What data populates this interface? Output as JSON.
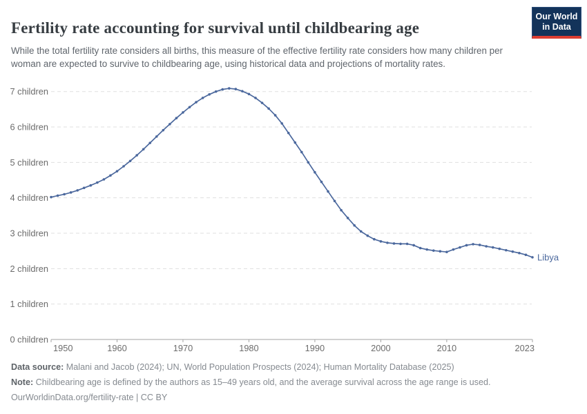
{
  "header": {
    "title": "Fertility rate accounting for survival until childbearing age",
    "subtitle": "While the total fertility rate considers all births, this measure of the effective fertility rate considers how many children per woman are expected to survive to childbearing age, using historical data and projections of mortality rates.",
    "logo": {
      "line1": "Our World",
      "line2": "in Data"
    }
  },
  "chart_data": {
    "type": "line",
    "title": "Fertility rate accounting for survival until childbearing age",
    "xlabel": "",
    "ylabel": "",
    "ylim": [
      0,
      7.4
    ],
    "grid": "horizontal-dashed",
    "legend_position": "end-of-line-label",
    "xticks": [
      1950,
      1960,
      1970,
      1980,
      1990,
      2000,
      2010,
      2023
    ],
    "yticks": [
      0,
      1,
      2,
      3,
      4,
      5,
      6,
      7
    ],
    "ytick_labels": [
      "0 children",
      "1 children",
      "2 children",
      "3 children",
      "4 children",
      "5 children",
      "6 children",
      "7 children"
    ],
    "x": [
      1950,
      1951,
      1952,
      1953,
      1954,
      1955,
      1956,
      1957,
      1958,
      1959,
      1960,
      1961,
      1962,
      1963,
      1964,
      1965,
      1966,
      1967,
      1968,
      1969,
      1970,
      1971,
      1972,
      1973,
      1974,
      1975,
      1976,
      1977,
      1978,
      1979,
      1980,
      1981,
      1982,
      1983,
      1984,
      1985,
      1986,
      1987,
      1988,
      1989,
      1990,
      1991,
      1992,
      1993,
      1994,
      1995,
      1996,
      1997,
      1998,
      1999,
      2000,
      2001,
      2002,
      2003,
      2004,
      2005,
      2006,
      2007,
      2008,
      2009,
      2010,
      2011,
      2012,
      2013,
      2014,
      2015,
      2016,
      2017,
      2018,
      2019,
      2020,
      2021,
      2022,
      2023
    ],
    "series": [
      {
        "name": "Libya",
        "color": "#4b689d",
        "values": [
          4.02,
          4.06,
          4.1,
          4.15,
          4.21,
          4.28,
          4.35,
          4.43,
          4.52,
          4.63,
          4.75,
          4.89,
          5.04,
          5.2,
          5.37,
          5.55,
          5.73,
          5.91,
          6.08,
          6.25,
          6.41,
          6.56,
          6.7,
          6.82,
          6.92,
          7.0,
          7.06,
          7.09,
          7.07,
          7.01,
          6.93,
          6.82,
          6.68,
          6.52,
          6.33,
          6.1,
          5.83,
          5.56,
          5.29,
          5.0,
          4.72,
          4.45,
          4.18,
          3.91,
          3.65,
          3.43,
          3.22,
          3.05,
          2.93,
          2.83,
          2.77,
          2.73,
          2.71,
          2.7,
          2.7,
          2.66,
          2.58,
          2.54,
          2.51,
          2.49,
          2.47,
          2.54,
          2.6,
          2.66,
          2.69,
          2.67,
          2.63,
          2.6,
          2.56,
          2.52,
          2.48,
          2.44,
          2.39,
          2.32
        ]
      }
    ]
  },
  "footer": {
    "data_source_label": "Data source:",
    "data_source_text": " Malani and Jacob (2024); UN, World Population Prospects (2024); Human Mortality Database (2025)",
    "note_label": "Note:",
    "note_text": " Childbearing age is defined by the authors as 15–49 years old, and the average survival across the age range is used.",
    "url_text": "OurWorldinData.org/fertility-rate | CC BY"
  },
  "colors": {
    "line": "#4b689d",
    "end_label": "#4b689d",
    "grid": "#dfdfdf",
    "axis": "#a3a3a3",
    "tick_text": "#6b6b6b",
    "logo_bg": "#13335a",
    "logo_red": "#dc3e32"
  }
}
